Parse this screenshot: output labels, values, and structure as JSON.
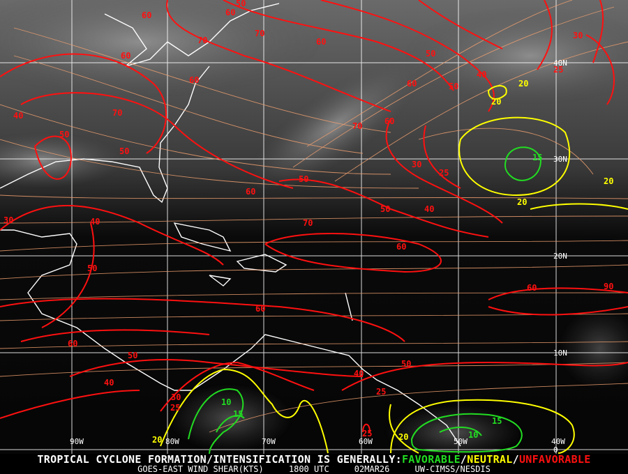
{
  "caption": {
    "headline_prefix": "TROPICAL CYCLONE FORMATION/INTENSIFICATION IS GENERALLY:",
    "favorable": "FAVORABLE",
    "sep1": "/",
    "neutral": "NEUTRAL",
    "sep2": "/",
    "unfavorable": "UNFAVORABLE",
    "product": "GOES-EAST WIND SHEAR(KTS)",
    "time": "1800 UTC",
    "date": "02MAR26",
    "source": "UW-CIMSS/NESDIS"
  },
  "colors": {
    "favorable": "#22dd22",
    "neutral": "#ffff00",
    "unfavorable": "#ff1010",
    "streamlines": "#f0a070",
    "coastline": "#ffffff",
    "grid": "#ffffff"
  },
  "grid": {
    "longitudes": [
      "90W",
      "80W",
      "70W",
      "60W",
      "50W",
      "40W"
    ],
    "latitudes": [
      "40N",
      "30N",
      "20N",
      "10N",
      "0"
    ]
  },
  "contour_labels": [
    {
      "value": "50",
      "category": "unfavorable"
    },
    {
      "value": "60",
      "category": "unfavorable"
    },
    {
      "value": "60",
      "category": "unfavorable"
    },
    {
      "value": "70",
      "category": "unfavorable"
    },
    {
      "value": "70",
      "category": "unfavorable"
    },
    {
      "value": "60",
      "category": "unfavorable"
    },
    {
      "value": "60",
      "category": "unfavorable"
    },
    {
      "value": "50",
      "category": "unfavorable"
    },
    {
      "value": "60",
      "category": "unfavorable"
    },
    {
      "value": "40",
      "category": "unfavorable"
    },
    {
      "value": "50",
      "category": "unfavorable"
    },
    {
      "value": "30",
      "category": "unfavorable"
    },
    {
      "value": "25",
      "category": "unfavorable"
    },
    {
      "value": "60",
      "category": "unfavorable"
    },
    {
      "value": "70",
      "category": "unfavorable"
    },
    {
      "value": "40",
      "category": "unfavorable"
    },
    {
      "value": "50",
      "category": "unfavorable"
    },
    {
      "value": "50",
      "category": "unfavorable"
    },
    {
      "value": "70",
      "category": "unfavorable"
    },
    {
      "value": "60",
      "category": "unfavorable"
    },
    {
      "value": "30",
      "category": "unfavorable"
    },
    {
      "value": "25",
      "category": "unfavorable"
    },
    {
      "value": "50",
      "category": "unfavorable"
    },
    {
      "value": "60",
      "category": "unfavorable"
    },
    {
      "value": "50",
      "category": "unfavorable"
    },
    {
      "value": "40",
      "category": "unfavorable"
    },
    {
      "value": "70",
      "category": "unfavorable"
    },
    {
      "value": "30",
      "category": "unfavorable"
    },
    {
      "value": "40",
      "category": "unfavorable"
    },
    {
      "value": "60",
      "category": "unfavorable"
    },
    {
      "value": "50",
      "category": "unfavorable"
    },
    {
      "value": "60",
      "category": "unfavorable"
    },
    {
      "value": "90",
      "category": "unfavorable"
    },
    {
      "value": "60",
      "category": "unfavorable"
    },
    {
      "value": "60",
      "category": "unfavorable"
    },
    {
      "value": "50",
      "category": "unfavorable"
    },
    {
      "value": "50",
      "category": "unfavorable"
    },
    {
      "value": "40",
      "category": "unfavorable"
    },
    {
      "value": "25",
      "category": "unfavorable"
    },
    {
      "value": "40",
      "category": "unfavorable"
    },
    {
      "value": "30",
      "category": "unfavorable"
    },
    {
      "value": "25",
      "category": "unfavorable"
    },
    {
      "value": "25",
      "category": "unfavorable"
    },
    {
      "value": "20",
      "category": "neutral"
    },
    {
      "value": "20",
      "category": "neutral"
    },
    {
      "value": "20",
      "category": "neutral"
    },
    {
      "value": "20",
      "category": "neutral"
    },
    {
      "value": "20",
      "category": "neutral"
    },
    {
      "value": "20",
      "category": "neutral"
    },
    {
      "value": "15",
      "category": "favorable"
    },
    {
      "value": "10",
      "category": "favorable"
    },
    {
      "value": "15",
      "category": "favorable"
    },
    {
      "value": "15",
      "category": "favorable"
    },
    {
      "value": "10",
      "category": "favorable"
    }
  ]
}
